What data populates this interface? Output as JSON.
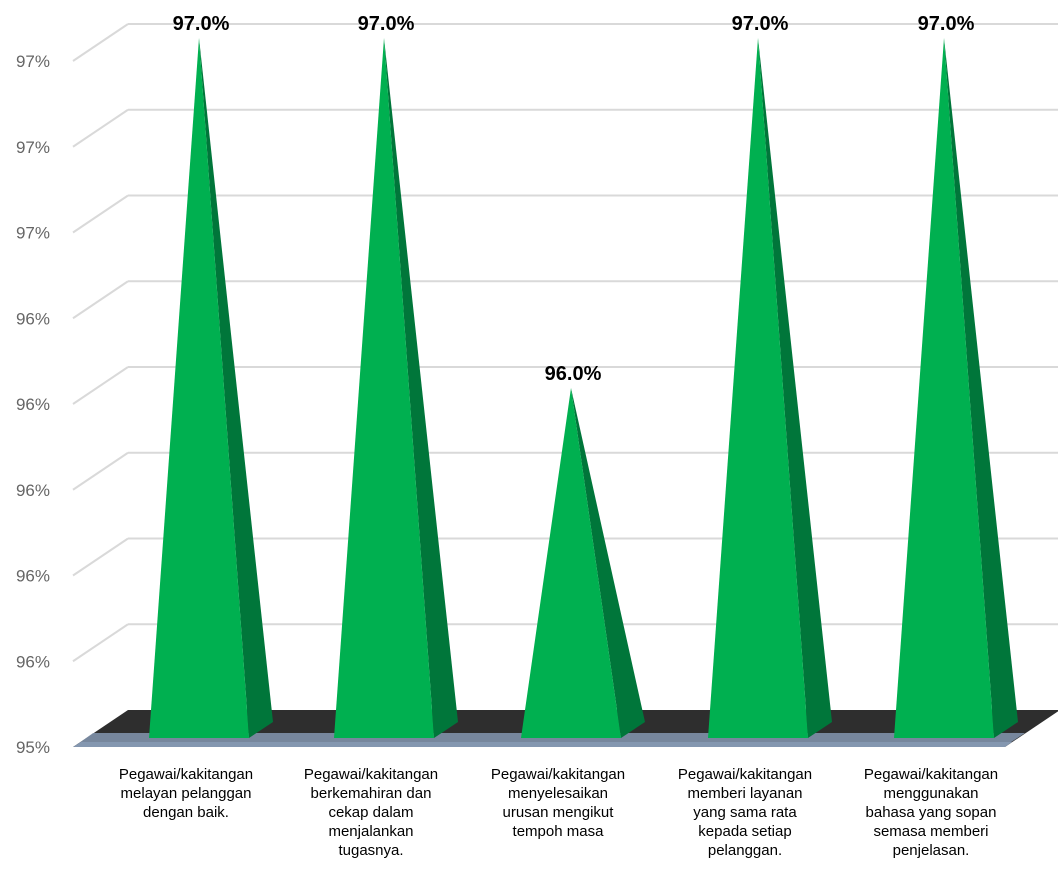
{
  "chart_data": {
    "type": "bar",
    "style": "3d-pyramid",
    "title": "",
    "xlabel": "",
    "ylabel": "",
    "ylim": [
      95.0,
      97.0
    ],
    "y_tick_labels": [
      "95%",
      "96%",
      "96%",
      "96%",
      "96%",
      "96%",
      "97%",
      "97%",
      "97%"
    ],
    "categories": [
      [
        "Pegawai/kakitangan",
        "melayan pelanggan",
        "dengan baik."
      ],
      [
        "Pegawai/kakitangan",
        "berkemahiran dan",
        "cekap dalam",
        "menjalankan",
        "tugasnya."
      ],
      [
        "Pegawai/kakitangan",
        "menyelesaikan",
        "urusan mengikut",
        "tempoh masa"
      ],
      [
        "Pegawai/kakitangan",
        "memberi layanan",
        "yang sama rata",
        "kepada setiap",
        "pelanggan."
      ],
      [
        "Pegawai/kakitangan",
        "menggunakan",
        "bahasa yang sopan",
        "semasa memberi",
        "penjelasan."
      ]
    ],
    "values": [
      97.0,
      97.0,
      96.0,
      97.0,
      97.0
    ],
    "data_labels": [
      "97.0%",
      "97.0%",
      "96.0%",
      "97.0%",
      "97.0%"
    ],
    "grid": true,
    "legend": "none",
    "colors": {
      "pyramid_front": "#00b050",
      "pyramid_side": "#00763a",
      "floor": "#8497b0",
      "floor_shadow": "#2e2e2e",
      "gridline": "#d9d9d9",
      "tick_text": "#666666"
    }
  }
}
